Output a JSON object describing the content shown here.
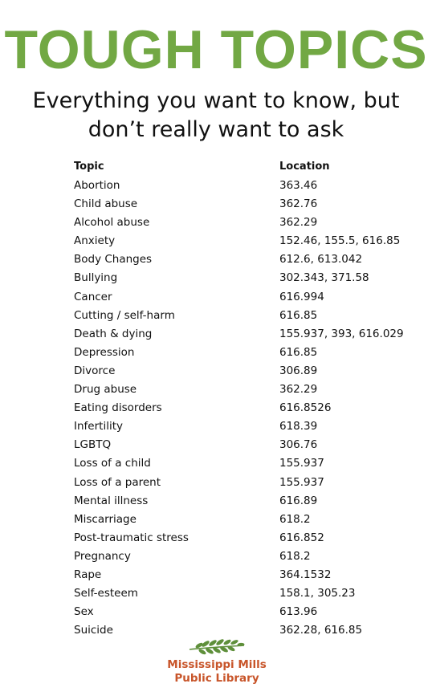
{
  "title": "TOUGH TOPICS",
  "subtitle": {
    "line1": "Everything you want to know, but",
    "line2": "don’t really want to ask"
  },
  "table": {
    "headers": {
      "topic": "Topic",
      "location": "Location"
    },
    "rows": [
      {
        "topic": "Abortion",
        "location": "363.46"
      },
      {
        "topic": "Child abuse",
        "location": "362.76"
      },
      {
        "topic": "Alcohol abuse",
        "location": "362.29"
      },
      {
        "topic": "Anxiety",
        "location": "152.46, 155.5, 616.85"
      },
      {
        "topic": "Body Changes",
        "location": "612.6, 613.042"
      },
      {
        "topic": "Bullying",
        "location": "302.343, 371.58"
      },
      {
        "topic": "Cancer",
        "location": "616.994"
      },
      {
        "topic": "Cutting / self-harm",
        "location": "616.85"
      },
      {
        "topic": "Death & dying",
        "location": "155.937, 393, 616.029"
      },
      {
        "topic": "Depression",
        "location": "616.85"
      },
      {
        "topic": "Divorce",
        "location": "306.89"
      },
      {
        "topic": "Drug abuse",
        "location": "362.29"
      },
      {
        "topic": "Eating disorders",
        "location": "616.8526"
      },
      {
        "topic": "Infertility",
        "location": "618.39"
      },
      {
        "topic": "LGBTQ",
        "location": "306.76"
      },
      {
        "topic": "Loss of a child",
        "location": "155.937"
      },
      {
        "topic": "Loss of a parent",
        "location": "155.937"
      },
      {
        "topic": "Mental illness",
        "location": "616.89"
      },
      {
        "topic": "Miscarriage",
        "location": "618.2"
      },
      {
        "topic": "Post-traumatic stress",
        "location": "616.852"
      },
      {
        "topic": "Pregnancy",
        "location": "618.2"
      },
      {
        "topic": "Rape",
        "location": "364.1532"
      },
      {
        "topic": "Self-esteem",
        "location": "158.1, 305.23"
      },
      {
        "topic": "Sex",
        "location": "613.96"
      },
      {
        "topic": "Suicide",
        "location": "362.28, 616.85"
      }
    ]
  },
  "logo": {
    "icon": "leaf-branch-icon",
    "line1": "Mississippi Mills",
    "line2": "Public Library"
  },
  "colors": {
    "title": "#72a844",
    "logo_text": "#c8552a",
    "logo_leaf": "#5e8f3a"
  }
}
